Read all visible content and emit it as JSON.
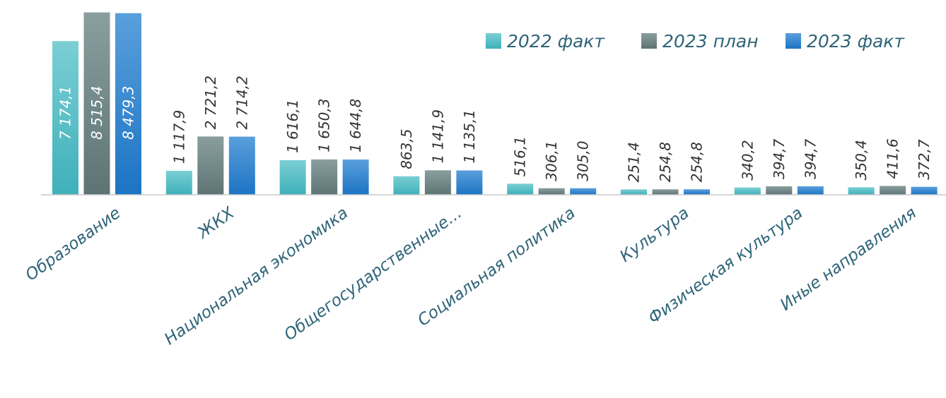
{
  "chart_data": {
    "type": "bar",
    "title": "",
    "xlabel": "",
    "ylabel": "",
    "ylim": [
      0,
      8600
    ],
    "grid": false,
    "legend_position": "top-right",
    "categories": [
      "Образование",
      "ЖКХ",
      "Национальная экономика",
      "Общегосударственные...",
      "Социальная политика",
      "Культура",
      "Физическая культура",
      "Иные направления"
    ],
    "series": [
      {
        "name": "2022 факт",
        "color": "#4fbcc4",
        "values": [
          7174.1,
          1117.9,
          1616.1,
          863.5,
          516.1,
          251.4,
          340.2,
          350.4
        ],
        "labels": [
          "7 174,1",
          "1 117,9",
          "1 616,1",
          "863,5",
          "516,1",
          "251,4",
          "340,2",
          "350,4"
        ]
      },
      {
        "name": "2023 план",
        "color": "#6f8585",
        "values": [
          8515.4,
          2721.2,
          1650.3,
          1141.9,
          306.1,
          254.8,
          394.7,
          411.6
        ],
        "labels": [
          "8 515,4",
          "2 721,2",
          "1 650,3",
          "1 141,9",
          "306,1",
          "254,8",
          "394,7",
          "411,6"
        ]
      },
      {
        "name": "2023 факт",
        "color": "#2b86d0",
        "values": [
          8479.3,
          2714.2,
          1644.8,
          1135.1,
          305.0,
          254.8,
          394.7,
          372.7
        ],
        "labels": [
          "8 479,3",
          "2 714,2",
          "1 644,8",
          "1 135,1",
          "305,0",
          "254,8",
          "394,7",
          "372,7"
        ]
      }
    ]
  }
}
